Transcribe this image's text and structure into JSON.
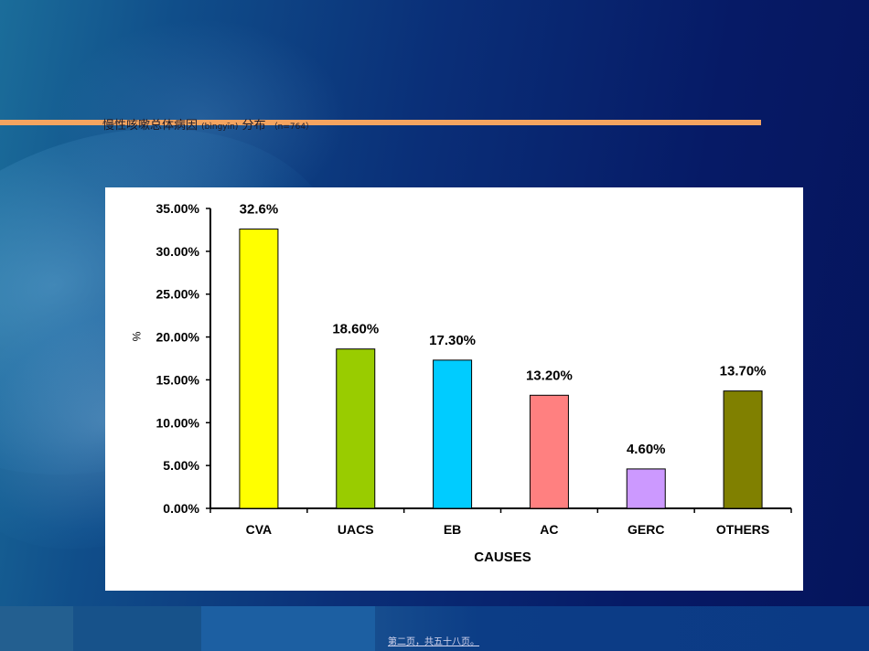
{
  "slide": {
    "title_main": "慢性咳嗽总体病因",
    "title_pinyin": "(bìngyīn)",
    "title_rest": "分布",
    "title_note": "（n=764）",
    "footer": "第二页，共五十八页。"
  },
  "chart_data": {
    "type": "bar",
    "categories": [
      "CVA",
      "UACS",
      "EB",
      "AC",
      "GERC",
      "OTHERS"
    ],
    "values": [
      32.6,
      18.6,
      17.3,
      13.2,
      4.6,
      13.7
    ],
    "data_labels": [
      "32.6%",
      "18.60%",
      "17.30%",
      "13.20%",
      "4.60%",
      "13.70%"
    ],
    "colors": [
      "#ffff00",
      "#99cc00",
      "#00ccff",
      "#ff8080",
      "#cc99ff",
      "#808000"
    ],
    "xlabel": "CAUSES",
    "ylabel": "%",
    "ylim": [
      0,
      35
    ],
    "yticks": [
      0,
      5,
      10,
      15,
      20,
      25,
      30,
      35
    ],
    "ytick_labels": [
      "0.00%",
      "5.00%",
      "10.00%",
      "15.00%",
      "20.00%",
      "25.00%",
      "30.00%",
      "35.00%"
    ],
    "grid": false,
    "legend": "none"
  }
}
